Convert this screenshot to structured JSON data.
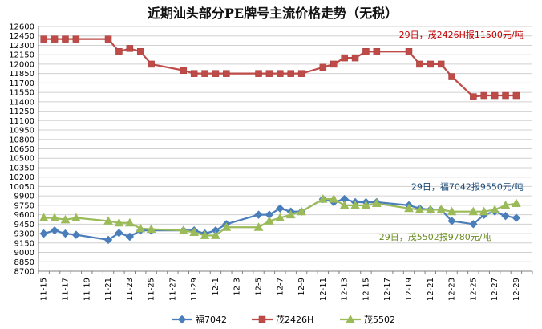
{
  "chart_data": {
    "type": "line",
    "title": "近期汕头部分PE牌号主流价格走势（无税）",
    "xlabel": "",
    "ylabel": "",
    "ylim": [
      8700,
      12600
    ],
    "yticks": [
      8700,
      8850,
      9000,
      9150,
      9300,
      9450,
      9600,
      9750,
      9900,
      10050,
      10200,
      10350,
      10500,
      10650,
      10800,
      10950,
      11100,
      11250,
      11400,
      11550,
      11700,
      11850,
      12000,
      12150,
      12300,
      12450,
      12600
    ],
    "x": [
      "11-15",
      "11-16",
      "11-17",
      "11-18",
      "11-19",
      "11-20",
      "11-21",
      "11-22",
      "11-23",
      "11-24",
      "11-25",
      "11-26",
      "11-27",
      "11-28",
      "11-29",
      "11-30",
      "12-1",
      "12-2",
      "12-3",
      "12-4",
      "12-5",
      "12-6",
      "12-7",
      "12-8",
      "12-9",
      "12-10",
      "12-11",
      "12-12",
      "12-13",
      "12-14",
      "12-15",
      "12-16",
      "12-17",
      "12-18",
      "12-19",
      "12-20",
      "12-21",
      "12-22",
      "12-23",
      "12-24",
      "12-25",
      "12-26",
      "12-27",
      "12-28",
      "12-29",
      "12-30"
    ],
    "xtick_labels": [
      "11-15",
      "11-17",
      "11-19",
      "11-21",
      "11-23",
      "11-25",
      "11-27",
      "11-29",
      "12-1",
      "12-3",
      "12-5",
      "12-7",
      "12-9",
      "12-11",
      "12-13",
      "12-15",
      "12-17",
      "12-19",
      "12-21",
      "12-23",
      "12-25",
      "12-27",
      "12-29"
    ],
    "grid": true,
    "legend": "bottom",
    "series": [
      {
        "name": "福7042",
        "color": "#4a7ebb",
        "marker": "diamond",
        "points": [
          [
            "11-15",
            9300
          ],
          [
            "11-16",
            9350
          ],
          [
            "11-17",
            9300
          ],
          [
            "11-18",
            9280
          ],
          [
            "11-21",
            9200
          ],
          [
            "11-22",
            9310
          ],
          [
            "11-23",
            9250
          ],
          [
            "11-24",
            9350
          ],
          [
            "11-25",
            9350
          ],
          [
            "11-28",
            9350
          ],
          [
            "11-29",
            9350
          ],
          [
            "11-30",
            9300
          ],
          [
            "12-1",
            9350
          ],
          [
            "12-2",
            9450
          ],
          [
            "12-5",
            9600
          ],
          [
            "12-6",
            9600
          ],
          [
            "12-7",
            9700
          ],
          [
            "12-8",
            9650
          ],
          [
            "12-9",
            9650
          ],
          [
            "12-11",
            9850
          ],
          [
            "12-12",
            9800
          ],
          [
            "12-13",
            9850
          ],
          [
            "12-14",
            9800
          ],
          [
            "12-15",
            9800
          ],
          [
            "12-16",
            9800
          ],
          [
            "12-19",
            9750
          ],
          [
            "12-20",
            9700
          ],
          [
            "12-21",
            9680
          ],
          [
            "12-22",
            9680
          ],
          [
            "12-23",
            9500
          ],
          [
            "12-25",
            9450
          ],
          [
            "12-26",
            9600
          ],
          [
            "12-27",
            9650
          ],
          [
            "12-28",
            9580
          ],
          [
            "12-29",
            9550
          ]
        ]
      },
      {
        "name": "茂2426H",
        "color": "#be4b48",
        "marker": "square",
        "points": [
          [
            "11-15",
            12400
          ],
          [
            "11-16",
            12400
          ],
          [
            "11-17",
            12400
          ],
          [
            "11-18",
            12400
          ],
          [
            "11-21",
            12400
          ],
          [
            "11-22",
            12200
          ],
          [
            "11-23",
            12250
          ],
          [
            "11-24",
            12200
          ],
          [
            "11-25",
            12000
          ],
          [
            "11-28",
            11900
          ],
          [
            "11-29",
            11850
          ],
          [
            "11-30",
            11850
          ],
          [
            "12-1",
            11850
          ],
          [
            "12-2",
            11850
          ],
          [
            "12-5",
            11850
          ],
          [
            "12-6",
            11850
          ],
          [
            "12-7",
            11850
          ],
          [
            "12-8",
            11850
          ],
          [
            "12-9",
            11850
          ],
          [
            "12-11",
            11950
          ],
          [
            "12-12",
            12000
          ],
          [
            "12-13",
            12100
          ],
          [
            "12-14",
            12100
          ],
          [
            "12-15",
            12200
          ],
          [
            "12-16",
            12200
          ],
          [
            "12-19",
            12200
          ],
          [
            "12-20",
            12000
          ],
          [
            "12-21",
            12000
          ],
          [
            "12-22",
            12000
          ],
          [
            "12-23",
            11800
          ],
          [
            "12-25",
            11480
          ],
          [
            "12-26",
            11500
          ],
          [
            "12-27",
            11500
          ],
          [
            "12-28",
            11500
          ],
          [
            "12-29",
            11500
          ]
        ]
      },
      {
        "name": "茂5502",
        "color": "#9bbb59",
        "marker": "triangle",
        "points": [
          [
            "11-15",
            9550
          ],
          [
            "11-16",
            9550
          ],
          [
            "11-17",
            9520
          ],
          [
            "11-18",
            9550
          ],
          [
            "11-21",
            9500
          ],
          [
            "11-22",
            9470
          ],
          [
            "11-23",
            9470
          ],
          [
            "11-24",
            9380
          ],
          [
            "11-25",
            9370
          ],
          [
            "11-28",
            9350
          ],
          [
            "11-29",
            9320
          ],
          [
            "11-30",
            9270
          ],
          [
            "12-1",
            9270
          ],
          [
            "12-2",
            9400
          ],
          [
            "12-5",
            9400
          ],
          [
            "12-6",
            9500
          ],
          [
            "12-7",
            9550
          ],
          [
            "12-8",
            9600
          ],
          [
            "12-9",
            9650
          ],
          [
            "12-11",
            9850
          ],
          [
            "12-12",
            9850
          ],
          [
            "12-13",
            9750
          ],
          [
            "12-14",
            9750
          ],
          [
            "12-15",
            9750
          ],
          [
            "12-16",
            9780
          ],
          [
            "12-19",
            9700
          ],
          [
            "12-20",
            9680
          ],
          [
            "12-21",
            9680
          ],
          [
            "12-22",
            9680
          ],
          [
            "12-23",
            9650
          ],
          [
            "12-25",
            9650
          ],
          [
            "12-26",
            9650
          ],
          [
            "12-27",
            9680
          ],
          [
            "12-28",
            9750
          ],
          [
            "12-29",
            9780
          ]
        ]
      }
    ],
    "annotations": [
      {
        "text": "29日，茂2426H报11500元/吨",
        "color": "#c00000",
        "x": "12-29",
        "y": 12420,
        "anchor": "end"
      },
      {
        "text": "29日，福7042报9550元/吨",
        "color": "#1f4e79",
        "x": "12-29",
        "y": 10000,
        "anchor": "end"
      },
      {
        "text": "29日，茂5502报9780元/吨",
        "color": "#6b8e23",
        "x": "12-26",
        "y": 9200,
        "anchor": "end"
      }
    ]
  }
}
